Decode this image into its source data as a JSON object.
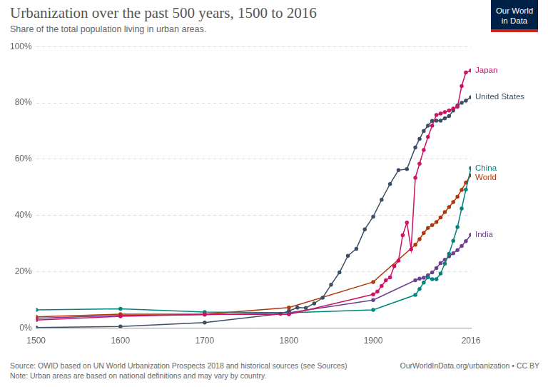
{
  "chart_data": {
    "type": "line",
    "title": "Urbanization over the past 500 years, 1500 to 2016",
    "subtitle": "Share of the total population living in urban areas.",
    "source": "Source: OWID based on UN World Urbanization Prospects 2018 and historical sources (see Sources)",
    "note": "Note: Urban areas are based on national definitions and may vary by country.",
    "credit": "OurWorldInData.org/urbanization • CC BY",
    "logo": [
      "Our World",
      "in Data"
    ],
    "xlim": [
      1500,
      2016
    ],
    "xticks": [
      1500,
      1600,
      1700,
      1800,
      1900,
      2016
    ],
    "ylim": [
      0,
      100
    ],
    "yticks": [
      {
        "value": 0,
        "label": "0%"
      },
      {
        "value": 20,
        "label": "20%"
      },
      {
        "value": 40,
        "label": "40%"
      },
      {
        "value": 60,
        "label": "60%"
      },
      {
        "value": 80,
        "label": "80%"
      },
      {
        "value": 100,
        "label": "100%"
      }
    ],
    "grid": true,
    "marker": "circle",
    "series": [
      {
        "name": "Japan",
        "color": "#cc1166",
        "x": [
          1500,
          1600,
          1700,
          1800,
          1900,
          1905,
          1910,
          1915,
          1920,
          1925,
          1930,
          1935,
          1940,
          1945,
          1950,
          1955,
          1960,
          1965,
          1970,
          1975,
          1980,
          1985,
          1990,
          1995,
          2000,
          2005,
          2010,
          2016
        ],
        "values": [
          2.9,
          4.2,
          4.9,
          4.9,
          12,
          13,
          15,
          17,
          18,
          22,
          24,
          33,
          37.5,
          28,
          53.4,
          58.4,
          63.3,
          67.9,
          71.9,
          75.7,
          76.2,
          76.7,
          77.3,
          78,
          78.6,
          86,
          90.8,
          91.5
        ]
      },
      {
        "name": "United States",
        "color": "#3c4e66",
        "x": [
          1500,
          1600,
          1700,
          1790,
          1800,
          1810,
          1820,
          1830,
          1840,
          1850,
          1860,
          1870,
          1880,
          1890,
          1900,
          1910,
          1920,
          1930,
          1940,
          1950,
          1955,
          1960,
          1965,
          1970,
          1975,
          1980,
          1985,
          1990,
          1995,
          2000,
          2005,
          2010,
          2016
        ],
        "values": [
          0.2,
          0.6,
          2,
          5.1,
          6.1,
          7.3,
          7.2,
          8.8,
          10.8,
          15.4,
          19.8,
          25.7,
          28.2,
          35.1,
          39.6,
          45.6,
          51.2,
          56.1,
          56.5,
          64.2,
          67.2,
          70,
          71.9,
          73.6,
          73.7,
          73.7,
          74.5,
          75.3,
          77.3,
          79.1,
          80,
          80.8,
          82
        ]
      },
      {
        "name": "China",
        "color": "#00847e",
        "x": [
          1500,
          1600,
          1700,
          1800,
          1900,
          1950,
          1955,
          1960,
          1965,
          1970,
          1975,
          1980,
          1985,
          1990,
          1995,
          2000,
          2005,
          2010,
          2016
        ],
        "values": [
          6.5,
          6.9,
          5.7,
          5.5,
          6.5,
          11.8,
          13.9,
          16.2,
          18.1,
          17.4,
          17.4,
          19.4,
          22.9,
          26.4,
          31,
          35.9,
          42.5,
          49.2,
          56.8
        ]
      },
      {
        "name": "World",
        "color": "#b13507",
        "x": [
          1500,
          1600,
          1700,
          1800,
          1900,
          1950,
          1955,
          1960,
          1965,
          1970,
          1975,
          1980,
          1985,
          1990,
          1995,
          2000,
          2005,
          2010,
          2016
        ],
        "values": [
          4,
          5,
          5,
          7.3,
          16.4,
          29.6,
          31.6,
          33.8,
          35.6,
          36.6,
          37.7,
          39.3,
          41.2,
          43,
          44.8,
          46.7,
          49.1,
          51.7,
          54.3
        ]
      },
      {
        "name": "India",
        "color": "#6d3e91",
        "x": [
          1500,
          1600,
          1700,
          1800,
          1900,
          1950,
          1955,
          1960,
          1965,
          1970,
          1975,
          1980,
          1985,
          1990,
          1995,
          2000,
          2005,
          2010,
          2016
        ],
        "values": [
          3.5,
          4.5,
          4.8,
          5.5,
          10,
          17,
          17.6,
          17.9,
          18.8,
          19.8,
          21.3,
          23.1,
          24.3,
          25.5,
          26.6,
          27.7,
          29.2,
          30.9,
          33.2
        ]
      }
    ]
  }
}
